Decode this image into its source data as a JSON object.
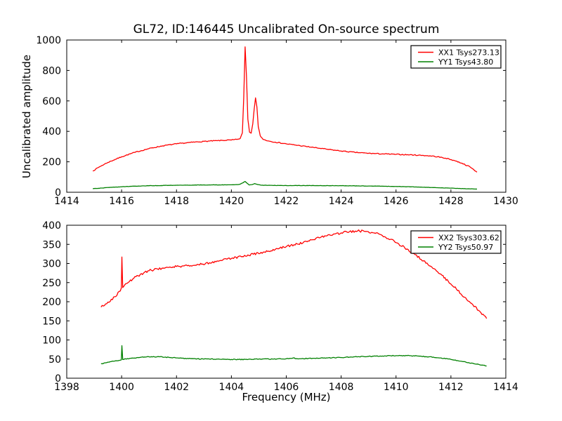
{
  "figure": {
    "title": "GL72, ID:146445 Uncalibrated On-source spectrum",
    "xlabel": "Frequency (MHz)",
    "ylabel": "Uncalibrated amplitude",
    "background_color": "#ffffff",
    "axis_color": "#000000"
  },
  "chart_data": [
    {
      "type": "line",
      "name": "top-spectrum",
      "xlim": [
        1414,
        1430
      ],
      "ylim": [
        0,
        1000
      ],
      "xticks": [
        1414,
        1416,
        1418,
        1420,
        1422,
        1424,
        1426,
        1428,
        1430
      ],
      "yticks": [
        0,
        200,
        400,
        600,
        800,
        1000
      ],
      "grid": false,
      "legend_position": "upper right",
      "legend": [
        "XX1 Tsys273.13",
        "YY1 Tsys43.80"
      ],
      "series": [
        {
          "name": "XX1 Tsys273.13",
          "color": "#ff0000",
          "noise": 3,
          "points": [
            [
              1414.95,
              140
            ],
            [
              1415.2,
              168
            ],
            [
              1415.5,
              196
            ],
            [
              1416,
              233
            ],
            [
              1416.5,
              263
            ],
            [
              1417,
              287
            ],
            [
              1417.5,
              305
            ],
            [
              1418,
              318
            ],
            [
              1418.5,
              327
            ],
            [
              1419,
              334
            ],
            [
              1419.5,
              339
            ],
            [
              1420,
              343
            ],
            [
              1420.2,
              347
            ],
            [
              1420.32,
              353
            ],
            [
              1420.4,
              390
            ],
            [
              1420.45,
              620
            ],
            [
              1420.5,
              955
            ],
            [
              1420.55,
              760
            ],
            [
              1420.6,
              480
            ],
            [
              1420.66,
              395
            ],
            [
              1420.72,
              388
            ],
            [
              1420.78,
              450
            ],
            [
              1420.83,
              545
            ],
            [
              1420.88,
              620
            ],
            [
              1420.93,
              560
            ],
            [
              1420.98,
              430
            ],
            [
              1421.05,
              372
            ],
            [
              1421.15,
              348
            ],
            [
              1421.35,
              337
            ],
            [
              1421.6,
              329
            ],
            [
              1422,
              318
            ],
            [
              1422.5,
              306
            ],
            [
              1423,
              294
            ],
            [
              1423.5,
              282
            ],
            [
              1424,
              271
            ],
            [
              1424.5,
              262
            ],
            [
              1425,
              256
            ],
            [
              1425.5,
              252
            ],
            [
              1426,
              249
            ],
            [
              1426.5,
              246
            ],
            [
              1427,
              242
            ],
            [
              1427.4,
              236
            ],
            [
              1427.8,
              224
            ],
            [
              1428.1,
              210
            ],
            [
              1428.4,
              191
            ],
            [
              1428.7,
              166
            ],
            [
              1428.95,
              132
            ]
          ]
        },
        {
          "name": "YY1 Tsys43.80",
          "color": "#008000",
          "noise": 1,
          "points": [
            [
              1414.95,
              23
            ],
            [
              1415.5,
              31
            ],
            [
              1416,
              36
            ],
            [
              1416.5,
              40
            ],
            [
              1417,
              43
            ],
            [
              1418,
              46
            ],
            [
              1419,
              48
            ],
            [
              1420,
              49
            ],
            [
              1420.3,
              52
            ],
            [
              1420.42,
              62
            ],
            [
              1420.5,
              71
            ],
            [
              1420.58,
              58
            ],
            [
              1420.65,
              48
            ],
            [
              1420.75,
              50
            ],
            [
              1420.85,
              57
            ],
            [
              1420.95,
              51
            ],
            [
              1421.1,
              46
            ],
            [
              1421.5,
              45
            ],
            [
              1422,
              44
            ],
            [
              1423,
              44
            ],
            [
              1424,
              43
            ],
            [
              1425,
              41
            ],
            [
              1426,
              38
            ],
            [
              1426.5,
              36
            ],
            [
              1427,
              33
            ],
            [
              1427.5,
              30
            ],
            [
              1428,
              27
            ],
            [
              1428.5,
              24
            ],
            [
              1428.95,
              21
            ]
          ]
        }
      ]
    },
    {
      "type": "line",
      "name": "bottom-spectrum",
      "xlim": [
        1398,
        1414
      ],
      "ylim": [
        0,
        400
      ],
      "xticks": [
        1398,
        1400,
        1402,
        1404,
        1406,
        1408,
        1410,
        1412,
        1414
      ],
      "yticks": [
        0,
        50,
        100,
        150,
        200,
        250,
        300,
        350,
        400
      ],
      "grid": false,
      "legend_position": "upper right",
      "legend": [
        "XX2 Tsys303.62",
        "YY2 Tsys50.97"
      ],
      "series": [
        {
          "name": "XX2 Tsys303.62",
          "color": "#ff0000",
          "noise": 3,
          "points": [
            [
              1399.25,
              186
            ],
            [
              1399.5,
              199
            ],
            [
              1399.75,
              213
            ],
            [
              1399.95,
              228
            ],
            [
              1399.99,
              236
            ],
            [
              1400.01,
              317
            ],
            [
              1400.04,
              237
            ],
            [
              1400.2,
              248
            ],
            [
              1400.4,
              259
            ],
            [
              1400.6,
              268
            ],
            [
              1400.8,
              275
            ],
            [
              1401,
              281
            ],
            [
              1401.3,
              286
            ],
            [
              1401.6,
              289
            ],
            [
              1402,
              292
            ],
            [
              1402.4,
              294
            ],
            [
              1402.8,
              297
            ],
            [
              1403.2,
              302
            ],
            [
              1403.6,
              308
            ],
            [
              1404,
              313
            ],
            [
              1404.4,
              318
            ],
            [
              1404.8,
              324
            ],
            [
              1405.2,
              330
            ],
            [
              1405.6,
              337
            ],
            [
              1406,
              344
            ],
            [
              1406.4,
              351
            ],
            [
              1406.8,
              359
            ],
            [
              1407.2,
              367
            ],
            [
              1407.6,
              374
            ],
            [
              1408,
              380
            ],
            [
              1408.3,
              383
            ],
            [
              1408.6,
              385
            ],
            [
              1408.9,
              384
            ],
            [
              1409.2,
              380
            ],
            [
              1409.5,
              373
            ],
            [
              1409.8,
              363
            ],
            [
              1410.1,
              351
            ],
            [
              1410.4,
              338
            ],
            [
              1410.7,
              323
            ],
            [
              1411,
              307
            ],
            [
              1411.3,
              291
            ],
            [
              1411.6,
              273
            ],
            [
              1411.9,
              254
            ],
            [
              1412.2,
              233
            ],
            [
              1412.5,
              212
            ],
            [
              1412.8,
              192
            ],
            [
              1413.05,
              175
            ],
            [
              1413.3,
              156
            ]
          ]
        },
        {
          "name": "YY2 Tsys50.97",
          "color": "#008000",
          "noise": 1,
          "points": [
            [
              1399.25,
              38
            ],
            [
              1399.5,
              42
            ],
            [
              1399.75,
              45
            ],
            [
              1399.95,
              47
            ],
            [
              1399.99,
              48
            ],
            [
              1400.01,
              85
            ],
            [
              1400.04,
              49
            ],
            [
              1400.3,
              52
            ],
            [
              1400.6,
              54
            ],
            [
              1401,
              56
            ],
            [
              1401.4,
              56
            ],
            [
              1401.8,
              54
            ],
            [
              1402.2,
              52
            ],
            [
              1402.6,
              51
            ],
            [
              1403,
              50
            ],
            [
              1403.5,
              50
            ],
            [
              1404,
              49
            ],
            [
              1404.5,
              49
            ],
            [
              1405,
              50
            ],
            [
              1405.5,
              50
            ],
            [
              1406,
              51
            ],
            [
              1406.25,
              53
            ],
            [
              1406.4,
              51
            ],
            [
              1407,
              52
            ],
            [
              1407.5,
              53
            ],
            [
              1408,
              54
            ],
            [
              1408.5,
              56
            ],
            [
              1409,
              57
            ],
            [
              1409.5,
              58
            ],
            [
              1410,
              59
            ],
            [
              1410.4,
              59
            ],
            [
              1410.8,
              58
            ],
            [
              1411.2,
              56
            ],
            [
              1411.6,
              53
            ],
            [
              1412,
              49
            ],
            [
              1412.4,
              44
            ],
            [
              1412.8,
              39
            ],
            [
              1413.05,
              35
            ],
            [
              1413.3,
              32
            ]
          ]
        }
      ]
    }
  ]
}
